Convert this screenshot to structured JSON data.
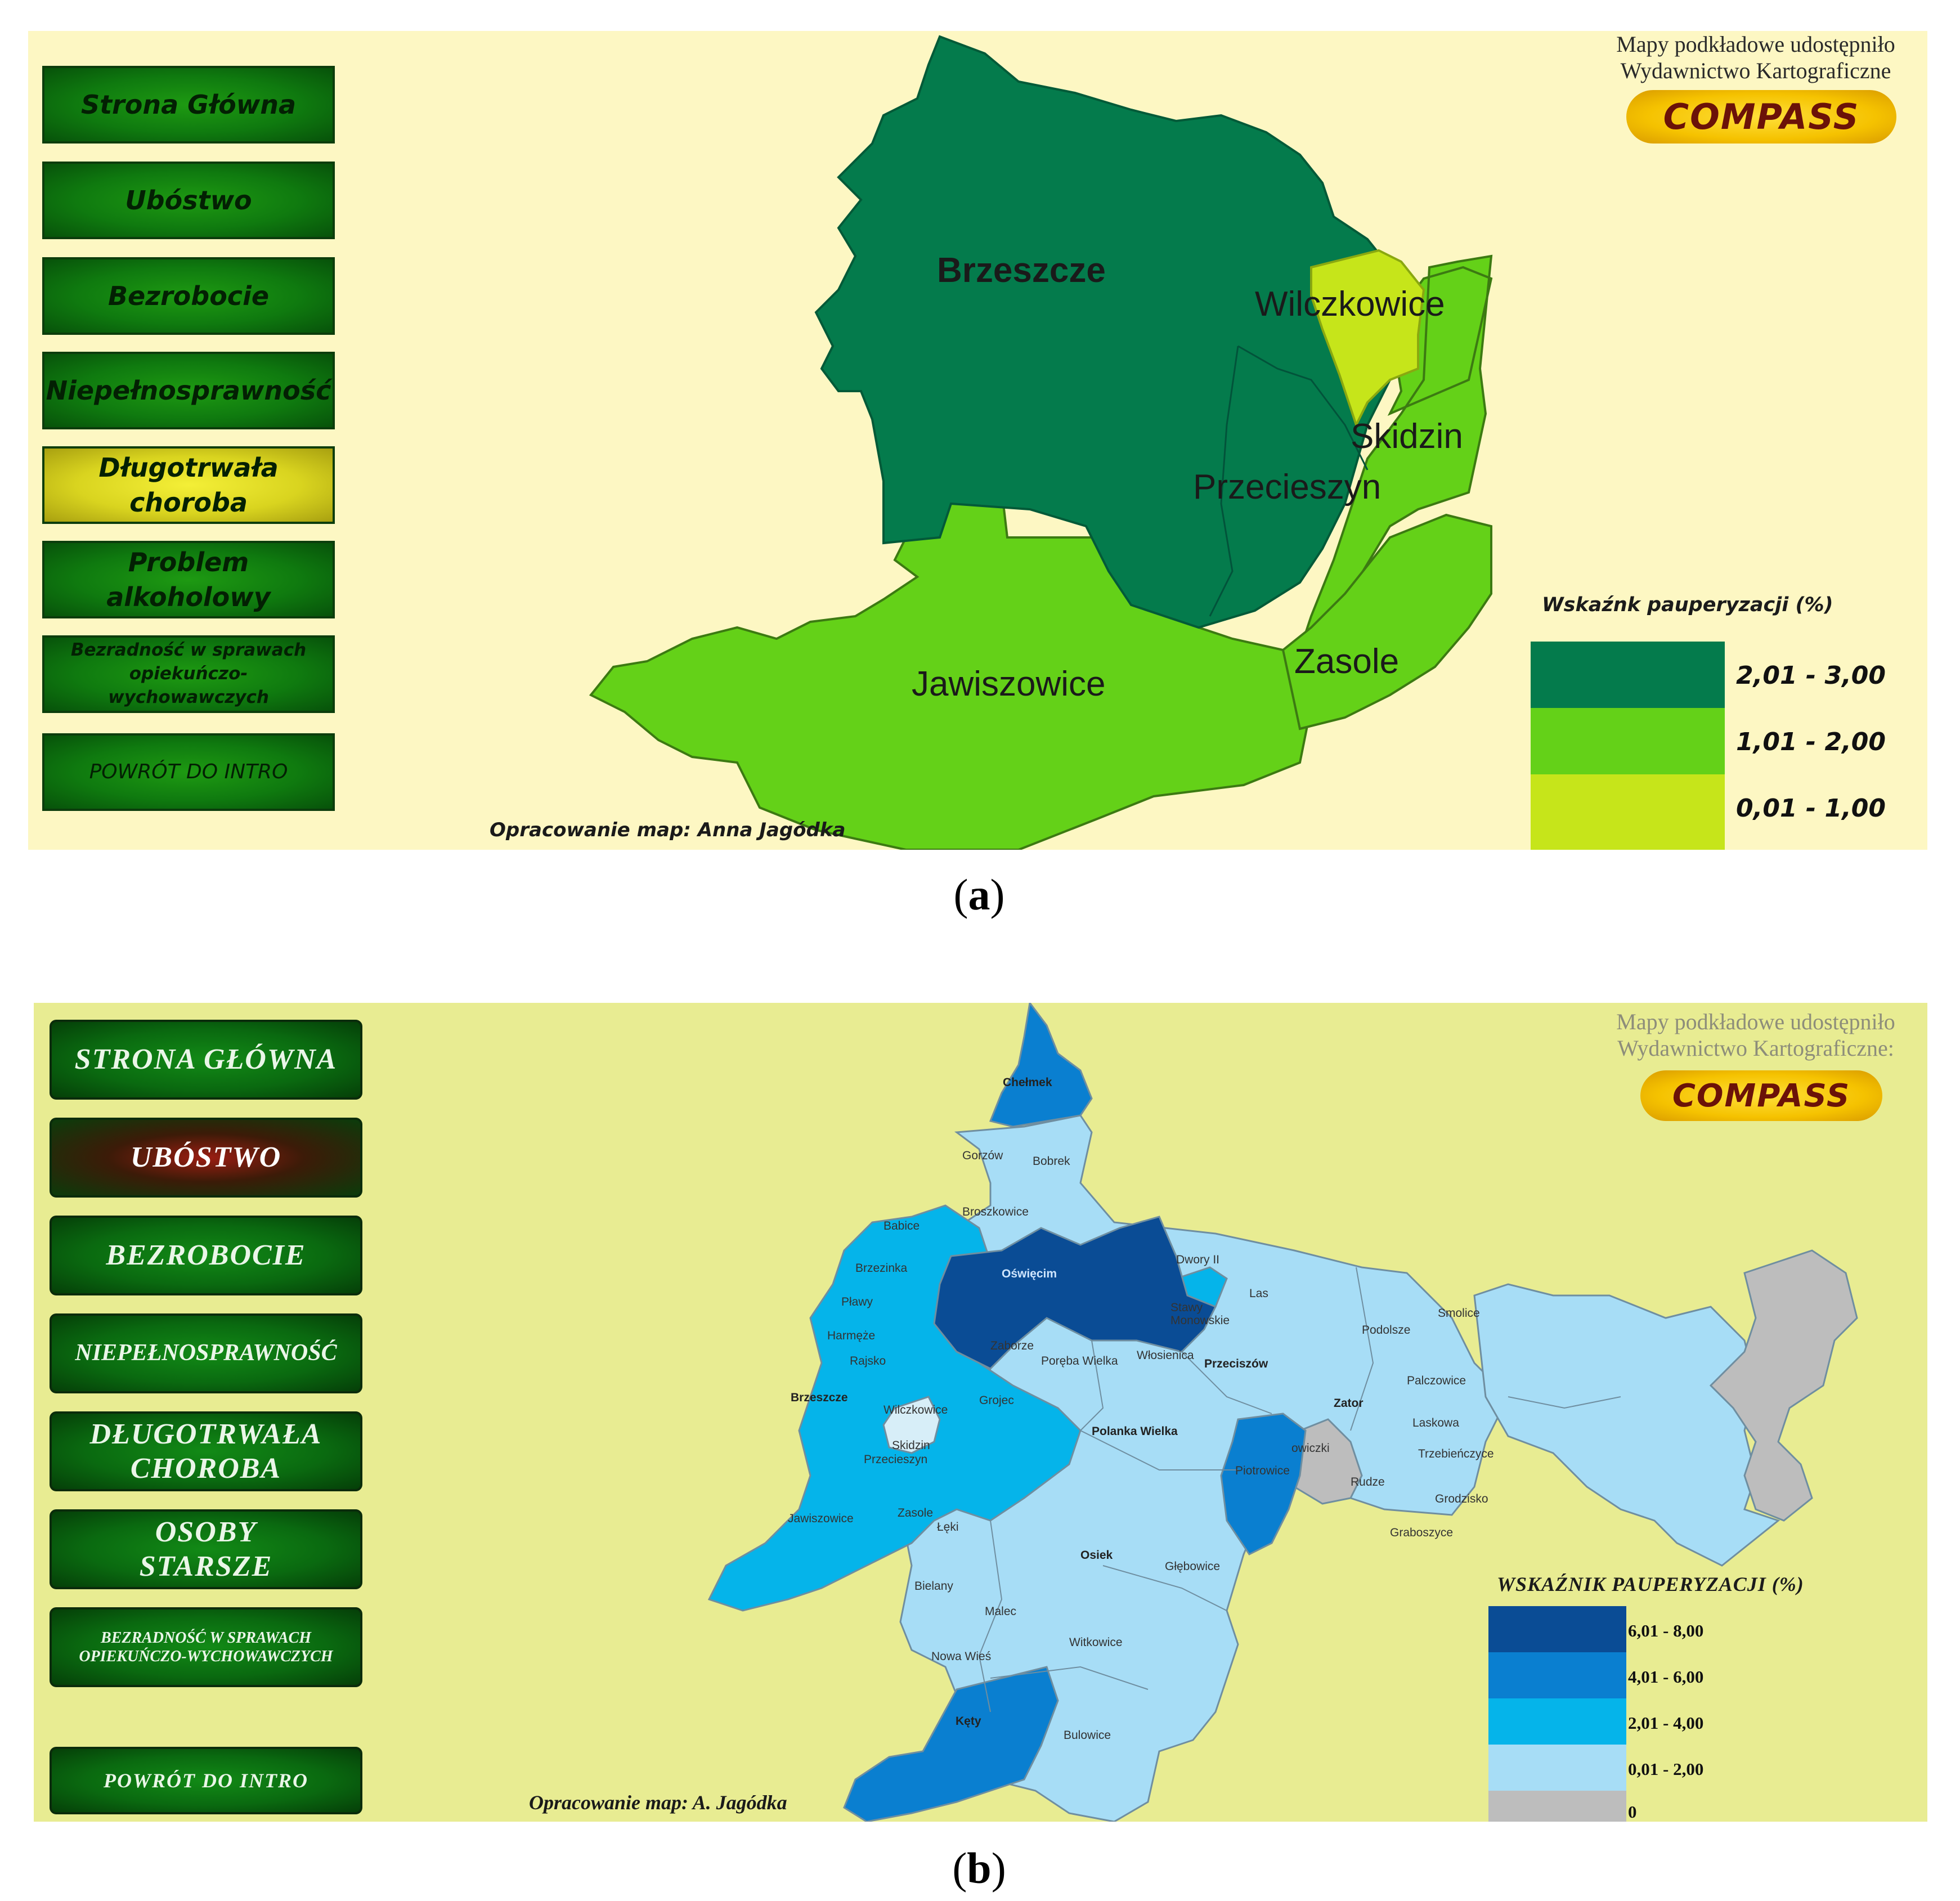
{
  "panel_a": {
    "nav": [
      {
        "label": "Strona Główna",
        "active": false
      },
      {
        "label": "Ubóstwo",
        "active": false
      },
      {
        "label": "Bezrobocie",
        "active": false
      },
      {
        "label": "Niepełnosprawność",
        "active": false
      },
      {
        "label": "Długotrwała choroba",
        "active": true
      },
      {
        "label": "Problem alkoholowy",
        "active": false
      },
      {
        "label": "Bezradność w sprawach opiekuńczo-wychowawczych",
        "active": false
      },
      {
        "label": "POWRÓT DO INTRO",
        "active": false
      }
    ],
    "credit_line1": "Mapy podkładowe udostępniło",
    "credit_line2": "Wydawnictwo Kartograficzne",
    "logo_text": "COMPASS",
    "map_credit": "Opracowanie map: Anna Jagódka",
    "regions": [
      {
        "name": "Brzeszcze",
        "class": "2,01 - 3,00"
      },
      {
        "name": "Wilczkowice",
        "class": "0,01 - 1,00"
      },
      {
        "name": "Skidzin",
        "class": "1,01 - 2,00"
      },
      {
        "name": "Przecieszyn",
        "class": "2,01 - 3,00"
      },
      {
        "name": "Jawiszowice",
        "class": "1,01 - 2,00"
      },
      {
        "name": "Zasole",
        "class": "1,01 - 2,00"
      }
    ],
    "legend": {
      "title": "Wskaźnk pauperyzacji (%)",
      "classes": [
        {
          "label": "2,01 - 3,00",
          "color": "#047b4c"
        },
        {
          "label": "1,01 - 2,00",
          "color": "#64d118"
        },
        {
          "label": "0,01 - 1,00",
          "color": "#c6e51a"
        }
      ]
    },
    "caption": "a"
  },
  "panel_b": {
    "nav": [
      {
        "label": "STRONA GŁÓWNA",
        "active": false
      },
      {
        "label": "UBÓSTWO",
        "active": true
      },
      {
        "label": "BEZROBOCIE",
        "active": false
      },
      {
        "label": "NIEPEŁNOSPRAWNOŚĆ",
        "active": false
      },
      {
        "label": "DŁUGOTRWAŁA CHOROBA",
        "active": false
      },
      {
        "label": "OSOBY STARSZE",
        "active": false
      },
      {
        "label": "BEZRADNOŚĆ W SPRAWACH OPIEKUŃCZO-WYCHOWAWCZYCH",
        "active": false
      },
      {
        "label": "POWRÓT DO INTRO",
        "active": false
      }
    ],
    "credit_line1": "Mapy podkładowe udostępniło",
    "credit_line2": "Wydawnictwo Kartograficzne:",
    "logo_text": "COMPASS",
    "map_credit": "Opracowanie map: A. Jagódka",
    "places": [
      {
        "name": "Chełmek",
        "bold": true
      },
      {
        "name": "Gorzów",
        "bold": false
      },
      {
        "name": "Bobrek",
        "bold": false
      },
      {
        "name": "Broszkowice",
        "bold": false
      },
      {
        "name": "Babice",
        "bold": false
      },
      {
        "name": "Brzezinka",
        "bold": false
      },
      {
        "name": "Oświęcim",
        "bold": true
      },
      {
        "name": "Dwory II",
        "bold": false
      },
      {
        "name": "Las",
        "bold": false
      },
      {
        "name": "Smolice",
        "bold": false
      },
      {
        "name": "Pławy",
        "bold": false
      },
      {
        "name": "Stawy Monowskie",
        "bold": false
      },
      {
        "name": "Podolsze",
        "bold": false
      },
      {
        "name": "Harmęże",
        "bold": false
      },
      {
        "name": "Zaborze",
        "bold": false
      },
      {
        "name": "Włosienica",
        "bold": false
      },
      {
        "name": "Poręba Wielka",
        "bold": false
      },
      {
        "name": "Przeciszów",
        "bold": true
      },
      {
        "name": "Rajsko",
        "bold": false
      },
      {
        "name": "Palczowice",
        "bold": false
      },
      {
        "name": "Brzeszcze",
        "bold": true
      },
      {
        "name": "Wilczkowice",
        "bold": false
      },
      {
        "name": "Grojec",
        "bold": false
      },
      {
        "name": "Zator",
        "bold": true
      },
      {
        "name": "Polanka Wielka",
        "bold": true
      },
      {
        "name": "Laskowa",
        "bold": false
      },
      {
        "name": "Skidzin",
        "bold": false
      },
      {
        "name": "Przecieszyn",
        "bold": false
      },
      {
        "name": "Piotrowice",
        "bold": false
      },
      {
        "name": "Graboszyce",
        "bold": false
      },
      {
        "name": "owiczki",
        "bold": false
      },
      {
        "name": "Trzebieńczyce",
        "bold": false
      },
      {
        "name": "Rudze",
        "bold": false
      },
      {
        "name": "Grodzisko",
        "bold": false
      },
      {
        "name": "Jawiszowice",
        "bold": false
      },
      {
        "name": "Zasole",
        "bold": false
      },
      {
        "name": "Łęki",
        "bold": false
      },
      {
        "name": "Osiek",
        "bold": true
      },
      {
        "name": "Głębowice",
        "bold": false
      },
      {
        "name": "Bielany",
        "bold": false
      },
      {
        "name": "Malec",
        "bold": false
      },
      {
        "name": "Witkowice",
        "bold": false
      },
      {
        "name": "Nowa Wieś",
        "bold": false
      },
      {
        "name": "Kęty",
        "bold": true
      },
      {
        "name": "Bulowice",
        "bold": false
      }
    ],
    "legend": {
      "title": "WSKAŹNIK PAUPERYZACJI (%)",
      "classes": [
        {
          "label": "6,01 - 8,00",
          "color": "#0a4c95"
        },
        {
          "label": "4,01 - 6,00",
          "color": "#0a7fd0"
        },
        {
          "label": "2,01 - 4,00",
          "color": "#05b4ea"
        },
        {
          "label": "0,01 - 2,00",
          "color": "#a7ddf6"
        },
        {
          "label": "0",
          "color": "#bdbdbd"
        }
      ]
    },
    "caption": "b"
  }
}
